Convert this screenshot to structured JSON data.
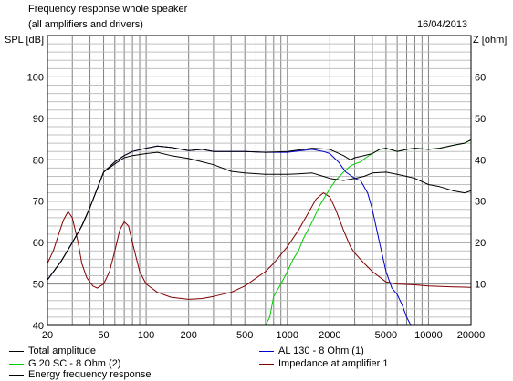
{
  "header": {
    "title": "Frequency response whole speaker",
    "subtitle": "(all amplifiers and drivers)",
    "date": "16/04/2013"
  },
  "chart_data": {
    "type": "line",
    "title": "Frequency response whole speaker",
    "subtitle": "(all amplifiers and drivers)",
    "x_scale": "log",
    "xlim": [
      20,
      20000
    ],
    "x_ticks": [
      20,
      50,
      100,
      200,
      500,
      1000,
      2000,
      5000,
      10000,
      20000
    ],
    "x_tick_labels": [
      "20",
      "50",
      "100",
      "200",
      "500",
      "1000",
      "2000",
      "5000",
      "10000",
      "20000"
    ],
    "ylabel_left": "SPL [dB]",
    "ylim_left": [
      40,
      110
    ],
    "y_ticks_left": [
      40,
      50,
      60,
      70,
      80,
      90,
      100
    ],
    "ylabel_right": "Z [ohm]",
    "ylim_right": [
      0,
      70
    ],
    "y_ticks_right": [
      10,
      20,
      30,
      40,
      50,
      60
    ],
    "grid": true,
    "legend_position": "bottom",
    "series": [
      {
        "name": "Total amplitude",
        "axis": "left",
        "color": "#000000",
        "points": [
          [
            20,
            51
          ],
          [
            25,
            55.5
          ],
          [
            30,
            60
          ],
          [
            35,
            64
          ],
          [
            40,
            68.5
          ],
          [
            45,
            73
          ],
          [
            50,
            77
          ],
          [
            60,
            79.5
          ],
          [
            70,
            81
          ],
          [
            80,
            82
          ],
          [
            100,
            82.8
          ],
          [
            120,
            83.3
          ],
          [
            150,
            83
          ],
          [
            200,
            82.2
          ],
          [
            250,
            82.5
          ],
          [
            300,
            82
          ],
          [
            500,
            82
          ],
          [
            700,
            81.8
          ],
          [
            1000,
            82
          ],
          [
            1500,
            82.8
          ],
          [
            2000,
            82.5
          ],
          [
            2500,
            81
          ],
          [
            2800,
            80
          ],
          [
            3000,
            80.5
          ],
          [
            3500,
            81
          ],
          [
            4000,
            81.5
          ],
          [
            4500,
            82.5
          ],
          [
            5000,
            82.8
          ],
          [
            6000,
            82
          ],
          [
            7000,
            82.5
          ],
          [
            8000,
            82.8
          ],
          [
            10000,
            82.5
          ],
          [
            12000,
            82.8
          ],
          [
            15000,
            83.5
          ],
          [
            18000,
            84
          ],
          [
            20000,
            84.8
          ]
        ]
      },
      {
        "name": "AL 130 - 8 Ohm (1)",
        "axis": "left",
        "color": "#0000cc",
        "points": [
          [
            20,
            51
          ],
          [
            25,
            55.5
          ],
          [
            30,
            60
          ],
          [
            35,
            64
          ],
          [
            40,
            68.5
          ],
          [
            45,
            73
          ],
          [
            50,
            77
          ],
          [
            60,
            79.5
          ],
          [
            70,
            81
          ],
          [
            80,
            82
          ],
          [
            100,
            82.8
          ],
          [
            120,
            83.3
          ],
          [
            150,
            83
          ],
          [
            200,
            82.2
          ],
          [
            250,
            82.5
          ],
          [
            300,
            82
          ],
          [
            500,
            82
          ],
          [
            700,
            81.8
          ],
          [
            1000,
            81.8
          ],
          [
            1500,
            82.5
          ],
          [
            1800,
            82
          ],
          [
            2000,
            81.5
          ],
          [
            2300,
            79.5
          ],
          [
            2600,
            77
          ],
          [
            3000,
            75.5
          ],
          [
            3300,
            75
          ],
          [
            3700,
            72
          ],
          [
            4000,
            68
          ],
          [
            4500,
            60
          ],
          [
            5000,
            53
          ],
          [
            5500,
            49
          ],
          [
            6000,
            47.5
          ],
          [
            6500,
            45
          ],
          [
            7000,
            42
          ],
          [
            7500,
            40
          ],
          [
            8000,
            39.5
          ],
          [
            9000,
            39.2
          ],
          [
            12000,
            39.2
          ],
          [
            20000,
            39.2
          ]
        ]
      },
      {
        "name": "G 20 SC - 8 Ohm (2)",
        "axis": "left",
        "color": "#00cc00",
        "points": [
          [
            20,
            40
          ],
          [
            700,
            40
          ],
          [
            750,
            42
          ],
          [
            800,
            47
          ],
          [
            900,
            50
          ],
          [
            1000,
            53
          ],
          [
            1100,
            56
          ],
          [
            1200,
            58
          ],
          [
            1300,
            61
          ],
          [
            1500,
            65
          ],
          [
            1700,
            69
          ],
          [
            2000,
            73
          ],
          [
            2200,
            75
          ],
          [
            2500,
            77
          ],
          [
            2800,
            78.5
          ],
          [
            3000,
            79
          ],
          [
            3300,
            79.5
          ],
          [
            3600,
            80.5
          ],
          [
            4000,
            81.5
          ],
          [
            4500,
            82.5
          ],
          [
            5000,
            82.8
          ],
          [
            6000,
            82
          ],
          [
            7000,
            82.5
          ],
          [
            8000,
            82.8
          ],
          [
            10000,
            82.5
          ],
          [
            12000,
            82.8
          ],
          [
            15000,
            83.5
          ],
          [
            18000,
            84
          ],
          [
            20000,
            84.8
          ]
        ]
      },
      {
        "name": "Energy frequency response",
        "axis": "left",
        "color": "#000000",
        "points": [
          [
            20,
            51
          ],
          [
            25,
            55.5
          ],
          [
            30,
            60
          ],
          [
            35,
            64
          ],
          [
            40,
            68.5
          ],
          [
            45,
            73
          ],
          [
            50,
            77
          ],
          [
            60,
            79
          ],
          [
            70,
            80.5
          ],
          [
            80,
            81
          ],
          [
            100,
            81.5
          ],
          [
            120,
            81.8
          ],
          [
            150,
            81
          ],
          [
            200,
            80.3
          ],
          [
            250,
            79.5
          ],
          [
            300,
            78.8
          ],
          [
            400,
            77.2
          ],
          [
            500,
            76.8
          ],
          [
            700,
            76.5
          ],
          [
            1000,
            76.5
          ],
          [
            1200,
            76.6
          ],
          [
            1500,
            76.8
          ],
          [
            1800,
            76
          ],
          [
            2000,
            75.5
          ],
          [
            2500,
            75
          ],
          [
            3000,
            75.5
          ],
          [
            3500,
            76
          ],
          [
            4000,
            76.8
          ],
          [
            5000,
            77
          ],
          [
            6000,
            76.5
          ],
          [
            7000,
            76
          ],
          [
            8000,
            75.5
          ],
          [
            10000,
            74
          ],
          [
            12000,
            73.5
          ],
          [
            15000,
            72.5
          ],
          [
            18000,
            72
          ],
          [
            20000,
            72.5
          ]
        ]
      },
      {
        "name": "Impedance at amplifier 1",
        "axis": "right",
        "color": "#800000",
        "points": [
          [
            20,
            15
          ],
          [
            22,
            18
          ],
          [
            24,
            22
          ],
          [
            26,
            25.5
          ],
          [
            28,
            27.5
          ],
          [
            30,
            26
          ],
          [
            33,
            20
          ],
          [
            35,
            15
          ],
          [
            38,
            11.5
          ],
          [
            42,
            9.5
          ],
          [
            45,
            9
          ],
          [
            50,
            10
          ],
          [
            55,
            13
          ],
          [
            60,
            18
          ],
          [
            65,
            23
          ],
          [
            70,
            25
          ],
          [
            75,
            24
          ],
          [
            80,
            20
          ],
          [
            90,
            13
          ],
          [
            100,
            10
          ],
          [
            120,
            8
          ],
          [
            150,
            6.8
          ],
          [
            200,
            6.3
          ],
          [
            250,
            6.5
          ],
          [
            300,
            7
          ],
          [
            400,
            8
          ],
          [
            500,
            9.5
          ],
          [
            700,
            13
          ],
          [
            800,
            15
          ],
          [
            1000,
            19
          ],
          [
            1200,
            23
          ],
          [
            1400,
            27
          ],
          [
            1600,
            30.5
          ],
          [
            1800,
            32
          ],
          [
            2000,
            31
          ],
          [
            2200,
            28
          ],
          [
            2500,
            23
          ],
          [
            2800,
            19
          ],
          [
            3000,
            17.5
          ],
          [
            3500,
            15
          ],
          [
            4000,
            13
          ],
          [
            5000,
            10.5
          ],
          [
            6000,
            10
          ],
          [
            8000,
            9.8
          ],
          [
            10000,
            9.5
          ],
          [
            15000,
            9.3
          ],
          [
            20000,
            9.2
          ]
        ]
      }
    ]
  },
  "legend": [
    {
      "label": "Total amplitude",
      "color": "#000000"
    },
    {
      "label": "AL 130 - 8 Ohm (1)",
      "color": "#0000cc"
    },
    {
      "label": "G 20 SC - 8 Ohm (2)",
      "color": "#00cc00"
    },
    {
      "label": "Impedance at amplifier 1",
      "color": "#800000"
    },
    {
      "label": "Energy frequency response",
      "color": "#000000"
    }
  ]
}
